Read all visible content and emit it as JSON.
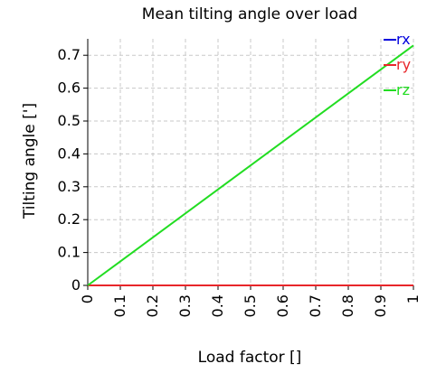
{
  "chart_data": {
    "type": "line",
    "title": "Mean tilting angle over load",
    "xlabel": "Load factor []",
    "ylabel": "Tilting angle [']",
    "xlim": [
      0,
      1
    ],
    "ylim": [
      0,
      0.75
    ],
    "x_ticks": [
      "0",
      "0.1",
      "0.2",
      "0.3",
      "0.4",
      "0.5",
      "0.6",
      "0.7",
      "0.8",
      "0.9",
      "1"
    ],
    "y_ticks": [
      "0",
      "0.1",
      "0.2",
      "0.3",
      "0.4",
      "0.5",
      "0.6",
      "0.7"
    ],
    "grid": true,
    "legend_position": "top-right",
    "series": [
      {
        "name": "rx",
        "color": "#0000dd",
        "x": [
          0,
          1
        ],
        "y": [
          0,
          0
        ]
      },
      {
        "name": "ry",
        "color": "#e8262a",
        "x": [
          0,
          1
        ],
        "y": [
          0,
          0
        ]
      },
      {
        "name": "rz",
        "color": "#22dd22",
        "x": [
          0,
          1
        ],
        "y": [
          0,
          0.73
        ]
      }
    ]
  }
}
